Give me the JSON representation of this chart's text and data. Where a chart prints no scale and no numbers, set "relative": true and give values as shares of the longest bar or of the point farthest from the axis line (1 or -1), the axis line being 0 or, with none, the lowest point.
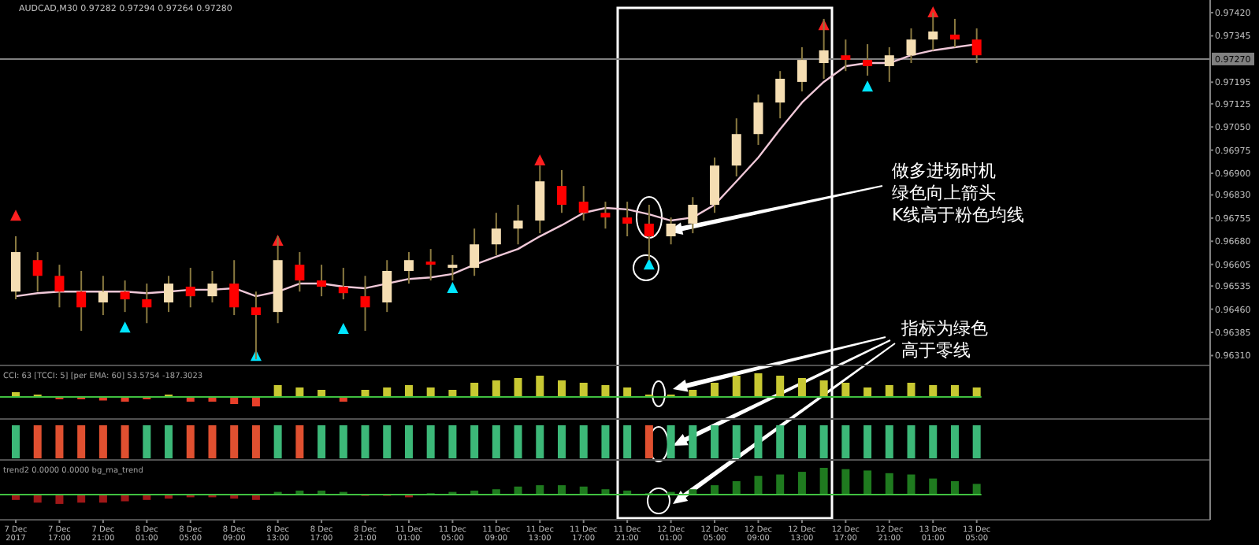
{
  "chart_data": [
    {
      "type": "candlestick",
      "title": "AUDCAD,M30  0.97282 0.97294 0.97264 0.97280",
      "tick_labels": "y",
      "categories": [
        null,
        null,
        null,
        null,
        null,
        null,
        null,
        null,
        null,
        null,
        null,
        null,
        null,
        null,
        null,
        null,
        null,
        null,
        null,
        null,
        null,
        null,
        null,
        null,
        null,
        null,
        null,
        null,
        null,
        null,
        null,
        null,
        null,
        null,
        null,
        null,
        null,
        null,
        null,
        null,
        null,
        null,
        null,
        null,
        null
      ],
      "ylim": [
        0.96278,
        0.97461
      ],
      "yticks": [
        {
          "value": 0.9742,
          "label": "0.97420"
        },
        {
          "value": 0.97345,
          "label": "0.97345"
        },
        {
          "value": 0.97195,
          "label": "0.97195"
        },
        {
          "value": 0.97125,
          "label": "0.97125"
        },
        {
          "value": 0.9705,
          "label": "0.97050"
        },
        {
          "value": 0.96975,
          "label": "0.96975"
        },
        {
          "value": 0.969,
          "label": "0.96900"
        },
        {
          "value": 0.9683,
          "label": "0.96830"
        },
        {
          "value": 0.96755,
          "label": "0.96755"
        },
        {
          "value": 0.9668,
          "label": "0.96680"
        },
        {
          "value": 0.96605,
          "label": "0.96605"
        },
        {
          "value": 0.96535,
          "label": "0.96535"
        },
        {
          "value": 0.9646,
          "label": "0.96460"
        },
        {
          "value": 0.96385,
          "label": "0.96385"
        },
        {
          "value": 0.9631,
          "label": "0.96310"
        }
      ],
      "ohlc": [
        [
          0.96517,
          0.96696,
          0.96492,
          0.96645
        ],
        [
          0.96619,
          0.96645,
          0.96517,
          0.96568
        ],
        [
          0.96568,
          0.96604,
          0.96466,
          0.96517
        ],
        [
          0.96517,
          0.96584,
          0.9639,
          0.96466
        ],
        [
          0.96482,
          0.96568,
          0.96441,
          0.96517
        ],
        [
          0.96517,
          0.96553,
          0.96451,
          0.96492
        ],
        [
          0.96492,
          0.96543,
          0.96415,
          0.96466
        ],
        [
          0.96482,
          0.96568,
          0.96451,
          0.96543
        ],
        [
          0.96533,
          0.96594,
          0.96466,
          0.96502
        ],
        [
          0.96502,
          0.96584,
          0.96482,
          0.96543
        ],
        [
          0.96543,
          0.96619,
          0.96441,
          0.96466
        ],
        [
          0.96466,
          0.96517,
          0.96298,
          0.96441
        ],
        [
          0.96451,
          0.96696,
          0.96415,
          0.96619
        ],
        [
          0.96604,
          0.96645,
          0.96517,
          0.96553
        ],
        [
          0.96553,
          0.96604,
          0.96502,
          0.96533
        ],
        [
          0.96533,
          0.96594,
          0.96492,
          0.96512
        ],
        [
          0.96502,
          0.96568,
          0.9639,
          0.96466
        ],
        [
          0.96482,
          0.96619,
          0.96451,
          0.96584
        ],
        [
          0.96584,
          0.96645,
          0.96543,
          0.96619
        ],
        [
          0.96614,
          0.96655,
          0.96553,
          0.96604
        ],
        [
          0.96594,
          0.96635,
          0.96553,
          0.96604
        ],
        [
          0.96594,
          0.96721,
          0.96568,
          0.9667
        ],
        [
          0.9667,
          0.96772,
          0.96635,
          0.96721
        ],
        [
          0.96721,
          0.96798,
          0.9667,
          0.96747
        ],
        [
          0.96747,
          0.96925,
          0.96706,
          0.96874
        ],
        [
          0.96859,
          0.9691,
          0.96772,
          0.96798
        ],
        [
          0.96808,
          0.96859,
          0.96747,
          0.96772
        ],
        [
          0.96772,
          0.96808,
          0.96721,
          0.96757
        ],
        [
          0.96757,
          0.96808,
          0.96696,
          0.96737
        ],
        [
          0.96737,
          0.96798,
          0.96619,
          0.96696
        ],
        [
          0.96696,
          0.96757,
          0.9667,
          0.96737
        ],
        [
          0.96737,
          0.96823,
          0.96706,
          0.96798
        ],
        [
          0.96798,
          0.96951,
          0.96772,
          0.96925
        ],
        [
          0.96925,
          0.97078,
          0.9689,
          0.97027
        ],
        [
          0.97027,
          0.97155,
          0.96992,
          0.97129
        ],
        [
          0.97129,
          0.97231,
          0.97078,
          0.97206
        ],
        [
          0.97196,
          0.97308,
          0.97165,
          0.97267
        ],
        [
          0.97257,
          0.974,
          0.97206,
          0.97298
        ],
        [
          0.97282,
          0.97333,
          0.97231,
          0.97267
        ],
        [
          0.97267,
          0.97318,
          0.97216,
          0.97247
        ],
        [
          0.97247,
          0.97308,
          0.97196,
          0.97282
        ],
        [
          0.97282,
          0.97369,
          0.97257,
          0.97333
        ],
        [
          0.97333,
          0.9742,
          0.97298,
          0.97359
        ],
        [
          0.97349,
          0.974,
          0.97308,
          0.97333
        ],
        [
          0.97333,
          0.97369,
          0.97257,
          0.97282
        ]
      ],
      "colors": [
        "#f5deb3",
        "#ff0000",
        "#ff0000",
        "#ff0000",
        "#f5deb3",
        "#ff0000",
        "#ff0000",
        "#f5deb3",
        "#ff0000",
        "#f5deb3",
        "#ff0000",
        "#ff0000",
        "#f5deb3",
        "#ff0000",
        "#ff0000",
        "#ff0000",
        "#ff0000",
        "#f5deb3",
        "#f5deb3",
        "#ff0000",
        "#f5deb3",
        "#f5deb3",
        "#f5deb3",
        "#f5deb3",
        "#f5deb3",
        "#ff0000",
        "#ff0000",
        "#ff0000",
        "#ff0000",
        "#ff0000",
        "#f5deb3",
        "#f5deb3",
        "#f5deb3",
        "#f5deb3",
        "#f5deb3",
        "#f5deb3",
        "#f5deb3",
        "#f5deb3",
        "#ff0000",
        "#ff0000",
        "#f5deb3",
        "#f5deb3",
        "#f5deb3",
        "#ff0000",
        "#ff0000"
      ],
      "series": [
        {
          "type": "line",
          "color": "#f0c8d8",
          "values": [
            0.96502,
            0.96512,
            0.96517,
            0.96517,
            0.96517,
            0.96517,
            0.96512,
            0.96517,
            0.96523,
            0.96523,
            0.96528,
            0.96502,
            0.96517,
            0.96543,
            0.96543,
            0.96533,
            0.96528,
            0.96543,
            0.96558,
            0.96563,
            0.96574,
            0.96604,
            0.9663,
            0.96655,
            0.96696,
            0.96732,
            0.96772,
            0.96788,
            0.96783,
            0.96767,
            0.96747,
            0.96757,
            0.96798,
            0.96874,
            0.96951,
            0.97043,
            0.97129,
            0.97196,
            0.97247,
            0.97257,
            0.97257,
            0.97282,
            0.97298,
            0.97308,
            0.97318
          ]
        },
        {
          "type": "scatter",
          "color": "#00e5ff",
          "marker": "triangle",
          "values": [
            null,
            null,
            null,
            null,
            null,
            0.964,
            null,
            null,
            null,
            null,
            null,
            0.96308,
            null,
            null,
            null,
            0.96395,
            null,
            null,
            null,
            null,
            0.96528,
            null,
            null,
            null,
            null,
            null,
            null,
            null,
            null,
            0.96604,
            null,
            null,
            null,
            null,
            null,
            null,
            null,
            null,
            null,
            0.9718,
            null,
            null,
            null,
            null,
            null
          ]
        },
        {
          "type": "scatter",
          "color": "#ff2020",
          "marker": "triangle",
          "values": [
            0.96762,
            null,
            null,
            null,
            null,
            null,
            null,
            null,
            null,
            null,
            null,
            null,
            0.96681,
            null,
            null,
            null,
            null,
            null,
            null,
            null,
            null,
            null,
            null,
            null,
            0.96941,
            null,
            null,
            null,
            null,
            null,
            null,
            null,
            null,
            null,
            null,
            null,
            null,
            0.97379,
            null,
            null,
            null,
            null,
            0.9742,
            null,
            null
          ]
        }
      ],
      "ref_lines": [
        {
          "axis": "y",
          "value": 0.9727,
          "label": "0.97270",
          "color": "#808080"
        }
      ],
      "annotations": [
        "做多进场时机",
        "绿色向上箭头",
        "K线高于粉色均线",
        "指标为绿色",
        "高于零线"
      ]
    },
    {
      "type": "bar",
      "title": "CCI: 63 [TCCI: 5] [per EMA: 60] 53.5754 -187.3023",
      "relative": true,
      "tick_labels": false,
      "ref_lines": [
        {
          "axis": "y",
          "value": 0,
          "color": "#40c040"
        }
      ],
      "categories": [
        null,
        null,
        null,
        null,
        null,
        null,
        null,
        null,
        null,
        null,
        null,
        null,
        null,
        null,
        null,
        null,
        null,
        null,
        null,
        null,
        null,
        null,
        null,
        null,
        null,
        null,
        null,
        null,
        null,
        null,
        null,
        null,
        null,
        null,
        null,
        null,
        null,
        null,
        null,
        null,
        null,
        null,
        null,
        null,
        null
      ],
      "values": [
        0.2,
        0.1,
        -0.1,
        -0.1,
        -0.15,
        -0.2,
        -0.1,
        0.1,
        -0.2,
        -0.2,
        -0.3,
        -0.4,
        0.5,
        0.4,
        0.3,
        -0.2,
        0.3,
        0.4,
        0.5,
        0.4,
        0.3,
        0.6,
        0.7,
        0.8,
        0.9,
        0.7,
        0.6,
        0.5,
        0.4,
        0.1,
        0.1,
        0.3,
        0.6,
        0.9,
        1,
        0.9,
        0.8,
        0.7,
        0.6,
        0.4,
        0.5,
        0.6,
        0.5,
        0.5,
        0.4
      ],
      "colors": [
        "#c8c832",
        "#c8c832",
        "#e8402a",
        "#e8402a",
        "#e8402a",
        "#e8402a",
        "#e8402a",
        "#c8c832",
        "#e8402a",
        "#e8402a",
        "#e8402a",
        "#e8402a",
        "#c8c832",
        "#c8c832",
        "#c8c832",
        "#e8402a",
        "#c8c832",
        "#c8c832",
        "#c8c832",
        "#c8c832",
        "#c8c832",
        "#c8c832",
        "#c8c832",
        "#c8c832",
        "#c8c832",
        "#c8c832",
        "#c8c832",
        "#c8c832",
        "#c8c832",
        "#c8c832",
        "#c8c832",
        "#c8c832",
        "#c8c832",
        "#c8c832",
        "#c8c832",
        "#c8c832",
        "#c8c832",
        "#c8c832",
        "#c8c832",
        "#c8c832",
        "#c8c832",
        "#c8c832",
        "#c8c832",
        "#c8c832",
        "#c8c832"
      ]
    },
    {
      "type": "bar",
      "relative": true,
      "tick_labels": false,
      "categories": [
        null,
        null,
        null,
        null,
        null,
        null,
        null,
        null,
        null,
        null,
        null,
        null,
        null,
        null,
        null,
        null,
        null,
        null,
        null,
        null,
        null,
        null,
        null,
        null,
        null,
        null,
        null,
        null,
        null,
        null,
        null,
        null,
        null,
        null,
        null,
        null,
        null,
        null,
        null,
        null,
        null,
        null,
        null,
        null,
        null
      ],
      "values": [
        1,
        1,
        1,
        1,
        1,
        1,
        1,
        1,
        1,
        1,
        1,
        1,
        1,
        1,
        1,
        1,
        1,
        1,
        1,
        1,
        1,
        1,
        1,
        1,
        1,
        1,
        1,
        1,
        1,
        1,
        1,
        1,
        1,
        1,
        1,
        1,
        1,
        1,
        1,
        1,
        1,
        1,
        1,
        1,
        1
      ],
      "colors": [
        "#3cb878",
        "#e05030",
        "#e05030",
        "#e05030",
        "#e05030",
        "#e05030",
        "#3cb878",
        "#3cb878",
        "#e05030",
        "#e05030",
        "#e05030",
        "#e05030",
        "#3cb878",
        "#e05030",
        "#3cb878",
        "#3cb878",
        "#3cb878",
        "#3cb878",
        "#3cb878",
        "#3cb878",
        "#3cb878",
        "#3cb878",
        "#3cb878",
        "#3cb878",
        "#3cb878",
        "#3cb878",
        "#3cb878",
        "#3cb878",
        "#3cb878",
        "#e05030",
        "#3cb878",
        "#3cb878",
        "#3cb878",
        "#3cb878",
        "#3cb878",
        "#3cb878",
        "#3cb878",
        "#3cb878",
        "#3cb878",
        "#3cb878",
        "#3cb878",
        "#3cb878",
        "#3cb878",
        "#3cb878",
        "#3cb878"
      ]
    },
    {
      "type": "bar",
      "title": "trend2 0.0000 0.0000 bg_ma_trend",
      "relative": true,
      "tick_labels": "x",
      "ref_lines": [
        {
          "axis": "y",
          "value": 0,
          "color": "#40c040"
        }
      ],
      "categories": [
        "7 Dec 2017",
        null,
        "7 Dec 17:00",
        null,
        "7 Dec 21:00",
        null,
        "8 Dec 01:00",
        null,
        "8 Dec 05:00",
        null,
        "8 Dec 09:00",
        null,
        "8 Dec 13:00",
        null,
        "8 Dec 17:00",
        null,
        "8 Dec 21:00",
        null,
        "11 Dec 01:00",
        null,
        "11 Dec 05:00",
        null,
        "11 Dec 09:00",
        null,
        "11 Dec 13:00",
        null,
        "11 Dec 17:00",
        null,
        "11 Dec 21:00",
        null,
        "12 Dec 01:00",
        null,
        "12 Dec 05:00",
        null,
        "12 Dec 09:00",
        null,
        "12 Dec 13:00",
        null,
        "12 Dec 17:00",
        null,
        "12 Dec 21:00",
        null,
        "13 Dec 01:00",
        null,
        "13 Dec 05:00"
      ],
      "values": [
        -0.2,
        -0.3,
        -0.35,
        -0.3,
        -0.3,
        -0.25,
        -0.2,
        -0.15,
        -0.1,
        -0.1,
        -0.15,
        -0.2,
        0.1,
        0.15,
        0.15,
        0.1,
        -0.05,
        -0.05,
        -0.1,
        0.05,
        0.1,
        0.15,
        0.2,
        0.3,
        0.35,
        0.35,
        0.3,
        0.2,
        0.15,
        0.05,
        0.1,
        0.2,
        0.35,
        0.5,
        0.7,
        0.75,
        0.85,
        1,
        0.95,
        0.9,
        0.8,
        0.75,
        0.6,
        0.5,
        0.4
      ],
      "colors": [
        "#a01818",
        "#a01818",
        "#a01818",
        "#a01818",
        "#a01818",
        "#a01818",
        "#a01818",
        "#a01818",
        "#a01818",
        "#a01818",
        "#a01818",
        "#a01818",
        "#1f7a1f",
        "#1f7a1f",
        "#1f7a1f",
        "#1f7a1f",
        "#a01818",
        "#a01818",
        "#a01818",
        "#1f7a1f",
        "#1f7a1f",
        "#1f7a1f",
        "#1f7a1f",
        "#1f7a1f",
        "#1f7a1f",
        "#1f7a1f",
        "#1f7a1f",
        "#1f7a1f",
        "#1f7a1f",
        "#1f7a1f",
        "#1f7a1f",
        "#1f7a1f",
        "#1f7a1f",
        "#1f7a1f",
        "#1f7a1f",
        "#1f7a1f",
        "#1f7a1f",
        "#1f7a1f",
        "#1f7a1f",
        "#1f7a1f",
        "#1f7a1f",
        "#1f7a1f",
        "#1f7a1f",
        "#1f7a1f",
        "#1f7a1f"
      ]
    }
  ]
}
